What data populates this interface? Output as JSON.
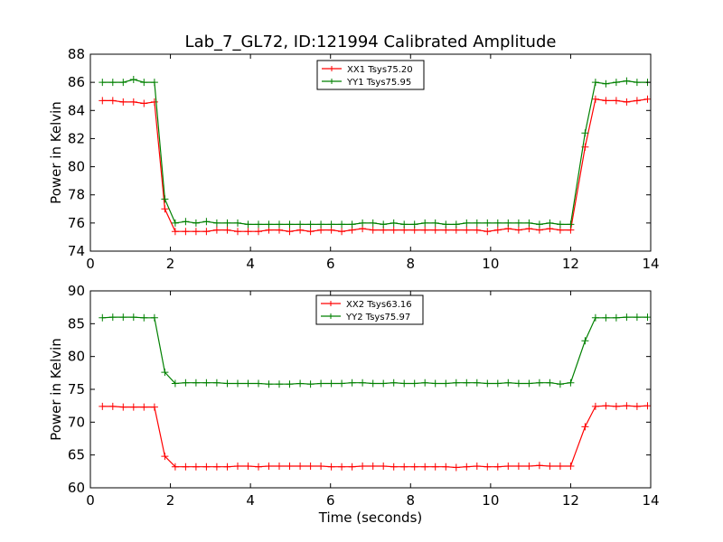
{
  "figure": {
    "title": "Lab_7_GL72, ID:121994 Calibrated Amplitude"
  },
  "chart_data": [
    {
      "type": "line",
      "title": "Lab_7_GL72, ID:121994 Calibrated Amplitude",
      "xlabel": "",
      "ylabel": "Power in Kelvin",
      "xlim": [
        0,
        14
      ],
      "ylim": [
        74,
        88
      ],
      "xticks": [
        0,
        2,
        4,
        6,
        8,
        10,
        12,
        14
      ],
      "yticks": [
        74,
        76,
        78,
        80,
        82,
        84,
        86,
        88
      ],
      "grid": false,
      "legend_position": "top-center",
      "x": [
        0.3,
        0.56,
        0.82,
        1.08,
        1.34,
        1.6,
        1.86,
        2.12,
        2.38,
        2.64,
        2.9,
        3.16,
        3.42,
        3.68,
        3.94,
        4.2,
        4.46,
        4.72,
        4.98,
        5.24,
        5.5,
        5.76,
        6.02,
        6.28,
        6.54,
        6.8,
        7.06,
        7.32,
        7.58,
        7.84,
        8.1,
        8.36,
        8.62,
        8.88,
        9.14,
        9.4,
        9.66,
        9.92,
        10.18,
        10.44,
        10.7,
        10.96,
        11.22,
        11.48,
        11.74,
        12.0,
        12.36,
        12.62,
        12.88,
        13.14,
        13.4,
        13.66,
        13.92
      ],
      "series": [
        {
          "name": "XX1 Tsys75.20",
          "color": "#ff0000",
          "values": [
            84.7,
            84.7,
            84.6,
            84.6,
            84.5,
            84.6,
            77.0,
            75.4,
            75.4,
            75.4,
            75.4,
            75.5,
            75.5,
            75.4,
            75.4,
            75.4,
            75.5,
            75.5,
            75.4,
            75.5,
            75.4,
            75.5,
            75.5,
            75.4,
            75.5,
            75.6,
            75.5,
            75.5,
            75.5,
            75.5,
            75.5,
            75.5,
            75.5,
            75.5,
            75.5,
            75.5,
            75.5,
            75.4,
            75.5,
            75.6,
            75.5,
            75.6,
            75.5,
            75.6,
            75.5,
            75.5,
            81.4,
            84.8,
            84.7,
            84.7,
            84.6,
            84.7,
            84.8
          ]
        },
        {
          "name": "YY1 Tsys75.95",
          "color": "#008000",
          "values": [
            86.0,
            86.0,
            86.0,
            86.2,
            86.0,
            86.0,
            77.7,
            76.0,
            76.1,
            76.0,
            76.1,
            76.0,
            76.0,
            76.0,
            75.9,
            75.9,
            75.9,
            75.9,
            75.9,
            75.9,
            75.9,
            75.9,
            75.9,
            75.9,
            75.9,
            76.0,
            76.0,
            75.9,
            76.0,
            75.9,
            75.9,
            76.0,
            76.0,
            75.9,
            75.9,
            76.0,
            76.0,
            76.0,
            76.0,
            76.0,
            76.0,
            76.0,
            75.9,
            76.0,
            75.9,
            75.9,
            82.4,
            86.0,
            85.9,
            86.0,
            86.1,
            86.0,
            86.0
          ]
        }
      ]
    },
    {
      "type": "line",
      "title": "",
      "xlabel": "Time (seconds)",
      "ylabel": "Power in Kelvin",
      "xlim": [
        0,
        14
      ],
      "ylim": [
        60,
        90
      ],
      "xticks": [
        0,
        2,
        4,
        6,
        8,
        10,
        12,
        14
      ],
      "yticks": [
        60,
        65,
        70,
        75,
        80,
        85,
        90
      ],
      "grid": false,
      "legend_position": "top-center",
      "x": [
        0.3,
        0.56,
        0.82,
        1.08,
        1.34,
        1.6,
        1.86,
        2.12,
        2.38,
        2.64,
        2.9,
        3.16,
        3.42,
        3.68,
        3.94,
        4.2,
        4.46,
        4.72,
        4.98,
        5.24,
        5.5,
        5.76,
        6.02,
        6.28,
        6.54,
        6.8,
        7.06,
        7.32,
        7.58,
        7.84,
        8.1,
        8.36,
        8.62,
        8.88,
        9.14,
        9.4,
        9.66,
        9.92,
        10.18,
        10.44,
        10.7,
        10.96,
        11.22,
        11.48,
        11.74,
        12.0,
        12.36,
        12.62,
        12.88,
        13.14,
        13.4,
        13.66,
        13.92
      ],
      "series": [
        {
          "name": "XX2 Tsys63.16",
          "color": "#ff0000",
          "values": [
            72.4,
            72.4,
            72.3,
            72.3,
            72.3,
            72.3,
            64.8,
            63.2,
            63.2,
            63.2,
            63.2,
            63.2,
            63.2,
            63.3,
            63.3,
            63.2,
            63.3,
            63.3,
            63.3,
            63.3,
            63.3,
            63.3,
            63.2,
            63.2,
            63.2,
            63.3,
            63.3,
            63.3,
            63.2,
            63.2,
            63.2,
            63.2,
            63.2,
            63.2,
            63.1,
            63.2,
            63.3,
            63.2,
            63.2,
            63.3,
            63.3,
            63.3,
            63.4,
            63.3,
            63.3,
            63.3,
            69.3,
            72.4,
            72.5,
            72.4,
            72.5,
            72.4,
            72.5
          ]
        },
        {
          "name": "YY2 Tsys75.97",
          "color": "#008000",
          "values": [
            85.9,
            86.0,
            86.0,
            86.0,
            85.9,
            85.9,
            77.6,
            75.9,
            76.0,
            76.0,
            76.0,
            76.0,
            75.9,
            75.9,
            75.9,
            75.9,
            75.8,
            75.8,
            75.8,
            75.9,
            75.8,
            75.9,
            75.9,
            75.9,
            76.0,
            76.0,
            75.9,
            75.9,
            76.0,
            75.9,
            75.9,
            76.0,
            75.9,
            75.9,
            76.0,
            76.0,
            76.0,
            75.9,
            75.9,
            76.0,
            75.9,
            75.9,
            76.0,
            76.0,
            75.8,
            76.0,
            82.4,
            85.9,
            85.9,
            85.9,
            86.0,
            86.0,
            86.0
          ]
        }
      ]
    }
  ]
}
